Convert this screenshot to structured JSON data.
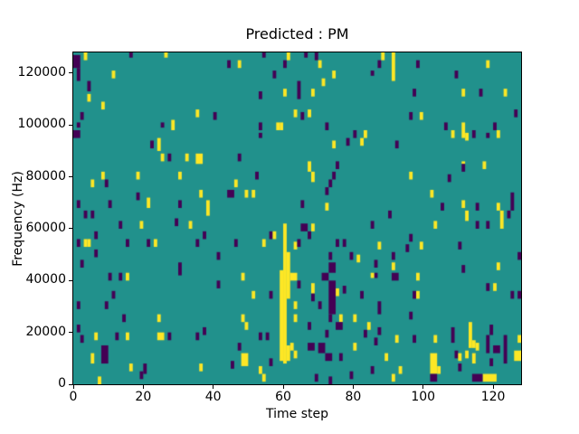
{
  "chart_data": {
    "type": "heatmap",
    "title": "Predicted : PM",
    "xlabel": "Time step",
    "ylabel": "Frequency (Hz)",
    "x_range": [
      0,
      128
    ],
    "y_range": [
      0,
      128000
    ],
    "x_ticks": [
      0,
      20,
      40,
      60,
      80,
      100,
      120
    ],
    "y_ticks": [
      0,
      20000,
      40000,
      60000,
      80000,
      100000,
      120000
    ],
    "bins": [
      128,
      128
    ],
    "bin_hz": 1000,
    "grid": false,
    "legend": null,
    "colormap": "viridis",
    "colors": {
      "mid": "#21918c",
      "high": "#fde725",
      "low": "#440154",
      "frame": "#000000",
      "background": "#ffffff"
    },
    "cells_format": "[t_step, f_bottom_kHz, height_bins, value(1=high/yellow,0=low/purple), width_steps(optional,default 1)]",
    "cells": [
      [
        0,
        122,
        5,
        0,
        2
      ],
      [
        1,
        117,
        5,
        0
      ],
      [
        3,
        125,
        3,
        1
      ],
      [
        4,
        113,
        4,
        0
      ],
      [
        4,
        109,
        3,
        1
      ],
      [
        11,
        118,
        3,
        1
      ],
      [
        8,
        106,
        3,
        1
      ],
      [
        16,
        126,
        2,
        0
      ],
      [
        26,
        126,
        2,
        1
      ],
      [
        2,
        102,
        3,
        0
      ],
      [
        1,
        99,
        2,
        0
      ],
      [
        0,
        95,
        3,
        0,
        2
      ],
      [
        35,
        103,
        3,
        1
      ],
      [
        40,
        102,
        3,
        0
      ],
      [
        25,
        99,
        2,
        0
      ],
      [
        28,
        98,
        4,
        1
      ],
      [
        22,
        91,
        3,
        0
      ],
      [
        24,
        90,
        5,
        1
      ],
      [
        25,
        86,
        3,
        1
      ],
      [
        27,
        86,
        3,
        0
      ],
      [
        32,
        86,
        3,
        1
      ],
      [
        35,
        85,
        4,
        1,
        2
      ],
      [
        54,
        126,
        2,
        0
      ],
      [
        61,
        125,
        3,
        1
      ],
      [
        66,
        126,
        2,
        0
      ],
      [
        69,
        125,
        3,
        0
      ],
      [
        44,
        122,
        3,
        0
      ],
      [
        47,
        122,
        3,
        1
      ],
      [
        70,
        122,
        3,
        1
      ],
      [
        57,
        118,
        3,
        0
      ],
      [
        60,
        122,
        3,
        0
      ],
      [
        74,
        118,
        3,
        1
      ],
      [
        71,
        115,
        3,
        1
      ],
      [
        64,
        110,
        7,
        0
      ],
      [
        53,
        110,
        3,
        0
      ],
      [
        60,
        111,
        3,
        1
      ],
      [
        68,
        111,
        3,
        1
      ],
      [
        63,
        103,
        3,
        1
      ],
      [
        67,
        103,
        3,
        1
      ],
      [
        65,
        102,
        3,
        0
      ],
      [
        53,
        98,
        3,
        0
      ],
      [
        58,
        98,
        3,
        1
      ],
      [
        59,
        98,
        3,
        1
      ],
      [
        72,
        98,
        3,
        0
      ],
      [
        53,
        95,
        2,
        0
      ],
      [
        74,
        91,
        3,
        1
      ],
      [
        78,
        92,
        3,
        0
      ],
      [
        80,
        95,
        3,
        0
      ],
      [
        83,
        95,
        3,
        1
      ],
      [
        82,
        92,
        3,
        1
      ],
      [
        47,
        86,
        3,
        0
      ],
      [
        67,
        82,
        4,
        1
      ],
      [
        75,
        83,
        3,
        0
      ],
      [
        91,
        117,
        11,
        1
      ],
      [
        87,
        122,
        3,
        0
      ],
      [
        85,
        119,
        2,
        0
      ],
      [
        88,
        125,
        3,
        1
      ],
      [
        98,
        122,
        3,
        0
      ],
      [
        109,
        118,
        3,
        0
      ],
      [
        118,
        122,
        3,
        1
      ],
      [
        97,
        111,
        3,
        0
      ],
      [
        111,
        111,
        3,
        1
      ],
      [
        116,
        111,
        3,
        0
      ],
      [
        123,
        111,
        3,
        1
      ],
      [
        96,
        102,
        3,
        0
      ],
      [
        99,
        102,
        3,
        1
      ],
      [
        126,
        103,
        3,
        0
      ],
      [
        106,
        98,
        3,
        0
      ],
      [
        108,
        95,
        3,
        1
      ],
      [
        111,
        95,
        6,
        1
      ],
      [
        112,
        94,
        3,
        1
      ],
      [
        114,
        95,
        3,
        0
      ],
      [
        118,
        95,
        2,
        0
      ],
      [
        121,
        95,
        3,
        1
      ],
      [
        120,
        98,
        3,
        0
      ],
      [
        92,
        91,
        3,
        0
      ],
      [
        111,
        85,
        1,
        1
      ],
      [
        111,
        82,
        3,
        0
      ],
      [
        8,
        79,
        3,
        1
      ],
      [
        5,
        76,
        3,
        1
      ],
      [
        9,
        76,
        3,
        0
      ],
      [
        18,
        79,
        3,
        1
      ],
      [
        30,
        79,
        3,
        1
      ],
      [
        18,
        71,
        3,
        0
      ],
      [
        10,
        68,
        3,
        0
      ],
      [
        21,
        68,
        4,
        1
      ],
      [
        1,
        68,
        3,
        0
      ],
      [
        3,
        64,
        3,
        0
      ],
      [
        5,
        64,
        3,
        0
      ],
      [
        30,
        68,
        3,
        0
      ],
      [
        36,
        72,
        3,
        1
      ],
      [
        38,
        65,
        6,
        1
      ],
      [
        13,
        60,
        3,
        0
      ],
      [
        19,
        60,
        3,
        1
      ],
      [
        29,
        61,
        3,
        0
      ],
      [
        33,
        60,
        3,
        1
      ],
      [
        6,
        56,
        3,
        0
      ],
      [
        37,
        56,
        3,
        0
      ],
      [
        1,
        53,
        3,
        0
      ],
      [
        3,
        53,
        3,
        1
      ],
      [
        4,
        53,
        3,
        1
      ],
      [
        15,
        53,
        3,
        0
      ],
      [
        21,
        53,
        3,
        0
      ],
      [
        23,
        53,
        3,
        1
      ],
      [
        35,
        53,
        3,
        0
      ],
      [
        6,
        49,
        3,
        0
      ],
      [
        2,
        45,
        3,
        0
      ],
      [
        30,
        42,
        5,
        0
      ],
      [
        41,
        48,
        3,
        0
      ],
      [
        52,
        79,
        3,
        0
      ],
      [
        68,
        78,
        4,
        1
      ],
      [
        74,
        79,
        3,
        0
      ],
      [
        46,
        76,
        3,
        1
      ],
      [
        73,
        76,
        3,
        0
      ],
      [
        72,
        73,
        3,
        0
      ],
      [
        44,
        72,
        3,
        0,
        2
      ],
      [
        49,
        72,
        3,
        1
      ],
      [
        51,
        72,
        3,
        1
      ],
      [
        72,
        67,
        3,
        1
      ],
      [
        65,
        68,
        3,
        0
      ],
      [
        56,
        56,
        3,
        0
      ],
      [
        57,
        56,
        3,
        1
      ],
      [
        65,
        59,
        3,
        0,
        2
      ],
      [
        68,
        59,
        3,
        1
      ],
      [
        67,
        56,
        3,
        0
      ],
      [
        54,
        53,
        3,
        1
      ],
      [
        46,
        53,
        3,
        0
      ],
      [
        63,
        52,
        3,
        1
      ],
      [
        64,
        53,
        3,
        0
      ],
      [
        75,
        53,
        3,
        0
      ],
      [
        77,
        53,
        3,
        0
      ],
      [
        79,
        48,
        3,
        0
      ],
      [
        81,
        47,
        3,
        1
      ],
      [
        73,
        48,
        3,
        0
      ],
      [
        73,
        43,
        4,
        0,
        2
      ],
      [
        117,
        83,
        3,
        1
      ],
      [
        96,
        79,
        3,
        1
      ],
      [
        107,
        78,
        3,
        0
      ],
      [
        102,
        72,
        3,
        1
      ],
      [
        105,
        67,
        3,
        0
      ],
      [
        111,
        68,
        3,
        1
      ],
      [
        112,
        63,
        4,
        1
      ],
      [
        115,
        67,
        3,
        0
      ],
      [
        90,
        64,
        3,
        0
      ],
      [
        85,
        60,
        3,
        0
      ],
      [
        103,
        60,
        3,
        1
      ],
      [
        115,
        60,
        3,
        0
      ],
      [
        118,
        60,
        3,
        0
      ],
      [
        121,
        67,
        3,
        1
      ],
      [
        122,
        60,
        7,
        1
      ],
      [
        125,
        67,
        7,
        0
      ],
      [
        124,
        64,
        3,
        0
      ],
      [
        95,
        51,
        3,
        0
      ],
      [
        96,
        55,
        3,
        0
      ],
      [
        99,
        52,
        3,
        1
      ],
      [
        87,
        52,
        3,
        1
      ],
      [
        86,
        45,
        3,
        0
      ],
      [
        91,
        48,
        3,
        0
      ],
      [
        91,
        44,
        3,
        1
      ],
      [
        110,
        52,
        3,
        0
      ],
      [
        111,
        43,
        3,
        0
      ],
      [
        121,
        44,
        3,
        1
      ],
      [
        127,
        48,
        3,
        0
      ],
      [
        10,
        40,
        3,
        0
      ],
      [
        13,
        40,
        3,
        0
      ],
      [
        15,
        40,
        3,
        1
      ],
      [
        41,
        37,
        3,
        0
      ],
      [
        11,
        33,
        3,
        0
      ],
      [
        1,
        29,
        3,
        0
      ],
      [
        9,
        29,
        3,
        0
      ],
      [
        14,
        24,
        3,
        0
      ],
      [
        24,
        24,
        3,
        1
      ],
      [
        1,
        20,
        3,
        0
      ],
      [
        6,
        17,
        3,
        1
      ],
      [
        2,
        16,
        3,
        0
      ],
      [
        12,
        17,
        3,
        0
      ],
      [
        15,
        17,
        3,
        1
      ],
      [
        24,
        17,
        3,
        1,
        2
      ],
      [
        27,
        17,
        3,
        0
      ],
      [
        35,
        17,
        3,
        0
      ],
      [
        37,
        19,
        3,
        0
      ],
      [
        8,
        8,
        7,
        0,
        2
      ],
      [
        5,
        8,
        4,
        1
      ],
      [
        7,
        0,
        3,
        1
      ],
      [
        16,
        5,
        3,
        1
      ],
      [
        19,
        2,
        3,
        0
      ],
      [
        20,
        4,
        4,
        0
      ],
      [
        36,
        5,
        3,
        1
      ],
      [
        48,
        40,
        3,
        1
      ],
      [
        62,
        40,
        3,
        1,
        2
      ],
      [
        64,
        37,
        3,
        0
      ],
      [
        68,
        35,
        4,
        1
      ],
      [
        68,
        32,
        3,
        0
      ],
      [
        63,
        29,
        3,
        1
      ],
      [
        63,
        24,
        3,
        1
      ],
      [
        62,
        13,
        3,
        1
      ],
      [
        63,
        10,
        3,
        1
      ],
      [
        56,
        33,
        3,
        0
      ],
      [
        51,
        33,
        3,
        1
      ],
      [
        48,
        24,
        3,
        1
      ],
      [
        49,
        21,
        3,
        1
      ],
      [
        53,
        17,
        3,
        0
      ],
      [
        55,
        17,
        3,
        0
      ],
      [
        47,
        13,
        3,
        0
      ],
      [
        48,
        7,
        5,
        1,
        2
      ],
      [
        45,
        6,
        3,
        0
      ],
      [
        53,
        4,
        3,
        1
      ],
      [
        54,
        1,
        3,
        1
      ],
      [
        56,
        7,
        3,
        0
      ],
      [
        69,
        1,
        3,
        0
      ],
      [
        73,
        0,
        3,
        0
      ],
      [
        76,
        24,
        3,
        1
      ],
      [
        80,
        24,
        3,
        1
      ],
      [
        80,
        13,
        3,
        1
      ],
      [
        76,
        9,
        3,
        0
      ],
      [
        77,
        35,
        3,
        0
      ],
      [
        75,
        34,
        3,
        1
      ],
      [
        82,
        33,
        3,
        0
      ],
      [
        84,
        21,
        3,
        1
      ],
      [
        83,
        18,
        3,
        0
      ],
      [
        79,
        2,
        3,
        0
      ],
      [
        71,
        40,
        3,
        0,
        2
      ],
      [
        73,
        27,
        13,
        0,
        2
      ],
      [
        70,
        29,
        3,
        0
      ],
      [
        73,
        24,
        3,
        0
      ],
      [
        75,
        21,
        3,
        0,
        2
      ],
      [
        72,
        18,
        3,
        0
      ],
      [
        67,
        21,
        3,
        0
      ],
      [
        67,
        13,
        3,
        0,
        2
      ],
      [
        70,
        12,
        4,
        0,
        2
      ],
      [
        72,
        9,
        3,
        0,
        2
      ],
      [
        59,
        9,
        35,
        1
      ],
      [
        60,
        8,
        54,
        1
      ],
      [
        61,
        33,
        18,
        1
      ],
      [
        61,
        9,
        6,
        1
      ],
      [
        86,
        41,
        2,
        0
      ],
      [
        91,
        40,
        3,
        0,
        2
      ],
      [
        98,
        40,
        3,
        1
      ],
      [
        85,
        41,
        2,
        1
      ],
      [
        118,
        36,
        3,
        0
      ],
      [
        120,
        36,
        3,
        1
      ],
      [
        125,
        33,
        3,
        0
      ],
      [
        127,
        33,
        3,
        0
      ],
      [
        98,
        33,
        3,
        1
      ],
      [
        97,
        33,
        3,
        0
      ],
      [
        87,
        27,
        5,
        0
      ],
      [
        96,
        25,
        3,
        0
      ],
      [
        87,
        19,
        3,
        0
      ],
      [
        86,
        15,
        3,
        0
      ],
      [
        92,
        16,
        3,
        1
      ],
      [
        97,
        16,
        3,
        0
      ],
      [
        103,
        16,
        3,
        1
      ],
      [
        89,
        9,
        3,
        1
      ],
      [
        108,
        16,
        6,
        0
      ],
      [
        113,
        14,
        10,
        1
      ],
      [
        114,
        14,
        3,
        1
      ],
      [
        112,
        10,
        3,
        1
      ],
      [
        114,
        8,
        4,
        1
      ],
      [
        115,
        13,
        3,
        1
      ],
      [
        119,
        19,
        4,
        0
      ],
      [
        118,
        12,
        7,
        0
      ],
      [
        123,
        8,
        11,
        0
      ],
      [
        120,
        12,
        3,
        0,
        2
      ],
      [
        119,
        7,
        3,
        0
      ],
      [
        109,
        10,
        3,
        0
      ],
      [
        110,
        9,
        3,
        1
      ],
      [
        110,
        5,
        3,
        0
      ],
      [
        126,
        9,
        4,
        1,
        2
      ],
      [
        102,
        4,
        8,
        1,
        2
      ],
      [
        102,
        1,
        3,
        0,
        2
      ],
      [
        104,
        4,
        3,
        1
      ],
      [
        117,
        1,
        3,
        1,
        4
      ],
      [
        114,
        1,
        3,
        0,
        3
      ],
      [
        93,
        4,
        3,
        1
      ],
      [
        91,
        1,
        3,
        1
      ],
      [
        85,
        4,
        3,
        0
      ],
      [
        127,
        16,
        3,
        1
      ]
    ]
  }
}
